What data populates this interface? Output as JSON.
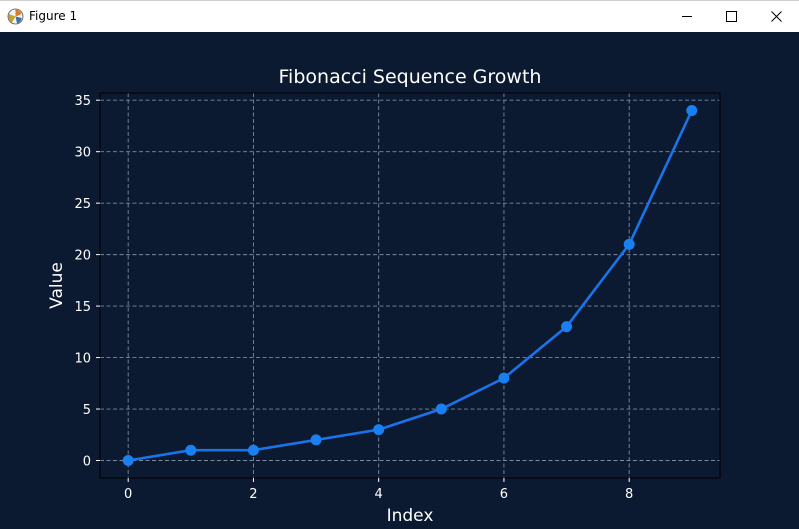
{
  "window": {
    "title": "Figure 1",
    "icon": "matplotlib-icon",
    "controls": [
      "minimize-icon",
      "maximize-icon",
      "close-icon"
    ]
  },
  "colors": {
    "background": "#0b1a30",
    "line": "#1a73e8",
    "marker": "#1a7ff0",
    "grid": "#7a8aa0",
    "text": "#ffffff"
  },
  "chart_data": {
    "type": "line",
    "title": "Fibonacci Sequence Growth",
    "xlabel": "Index",
    "ylabel": "Value",
    "x": [
      0,
      1,
      2,
      3,
      4,
      5,
      6,
      7,
      8,
      9
    ],
    "values": [
      0,
      1,
      1,
      2,
      3,
      5,
      8,
      13,
      21,
      34
    ],
    "xlim": [
      -0.45,
      9.45
    ],
    "ylim": [
      -1.7,
      35.7
    ],
    "xticks": [
      0,
      2,
      4,
      6,
      8
    ],
    "yticks": [
      0,
      5,
      10,
      15,
      20,
      25,
      30,
      35
    ],
    "grid": true,
    "grid_style": "dashed",
    "marker": "circle"
  }
}
